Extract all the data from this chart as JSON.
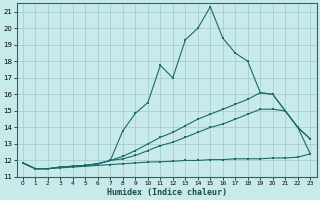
{
  "xlabel": "Humidex (Indice chaleur)",
  "bg_color": "#c8eaea",
  "line_color": "#1a6b6b",
  "grid_color": "#a0c8c8",
  "xlim": [
    -0.5,
    23.5
  ],
  "ylim": [
    11,
    21.5
  ],
  "xticks": [
    0,
    1,
    2,
    3,
    4,
    5,
    6,
    7,
    8,
    9,
    10,
    11,
    12,
    13,
    14,
    15,
    16,
    17,
    18,
    19,
    20,
    21,
    22,
    23
  ],
  "yticks": [
    11,
    12,
    13,
    14,
    15,
    16,
    17,
    18,
    19,
    20,
    21
  ],
  "line1_x": [
    0,
    1,
    2,
    3,
    4,
    5,
    6,
    7,
    8,
    9,
    10,
    11,
    12,
    13,
    14,
    15,
    16,
    17,
    18,
    19,
    20,
    21,
    22,
    23
  ],
  "line1_y": [
    11.85,
    11.5,
    11.5,
    11.6,
    11.65,
    11.7,
    11.8,
    12.0,
    13.8,
    14.85,
    15.5,
    17.75,
    17.0,
    19.3,
    20.0,
    21.3,
    19.4,
    18.5,
    18.0,
    16.1,
    16.0,
    15.0,
    14.0,
    13.3
  ],
  "line2_x": [
    0,
    1,
    2,
    3,
    4,
    5,
    6,
    7,
    8,
    9,
    10,
    11,
    12,
    13,
    14,
    15,
    16,
    17,
    18,
    19,
    20,
    21,
    22,
    23
  ],
  "line2_y": [
    11.85,
    11.5,
    11.5,
    11.6,
    11.65,
    11.7,
    11.8,
    12.0,
    12.25,
    12.6,
    13.0,
    13.4,
    13.7,
    14.1,
    14.5,
    14.8,
    15.1,
    15.4,
    15.7,
    16.1,
    16.0,
    15.0,
    14.0,
    13.3
  ],
  "line3_x": [
    0,
    1,
    2,
    3,
    4,
    5,
    6,
    7,
    8,
    9,
    10,
    11,
    12,
    13,
    14,
    15,
    16,
    17,
    18,
    19,
    20,
    21,
    22,
    23
  ],
  "line3_y": [
    11.85,
    11.5,
    11.5,
    11.6,
    11.65,
    11.7,
    11.8,
    12.0,
    12.1,
    12.3,
    12.6,
    12.9,
    13.1,
    13.4,
    13.7,
    14.0,
    14.2,
    14.5,
    14.8,
    15.1,
    15.1,
    15.0,
    14.0,
    12.4
  ],
  "line4_x": [
    0,
    1,
    2,
    3,
    4,
    5,
    6,
    7,
    8,
    9,
    10,
    11,
    12,
    13,
    14,
    15,
    16,
    17,
    18,
    19,
    20,
    21,
    22,
    23
  ],
  "line4_y": [
    11.85,
    11.5,
    11.5,
    11.55,
    11.6,
    11.65,
    11.7,
    11.75,
    11.8,
    11.85,
    11.9,
    11.92,
    11.95,
    12.0,
    12.0,
    12.05,
    12.05,
    12.1,
    12.1,
    12.1,
    12.15,
    12.15,
    12.2,
    12.4
  ]
}
